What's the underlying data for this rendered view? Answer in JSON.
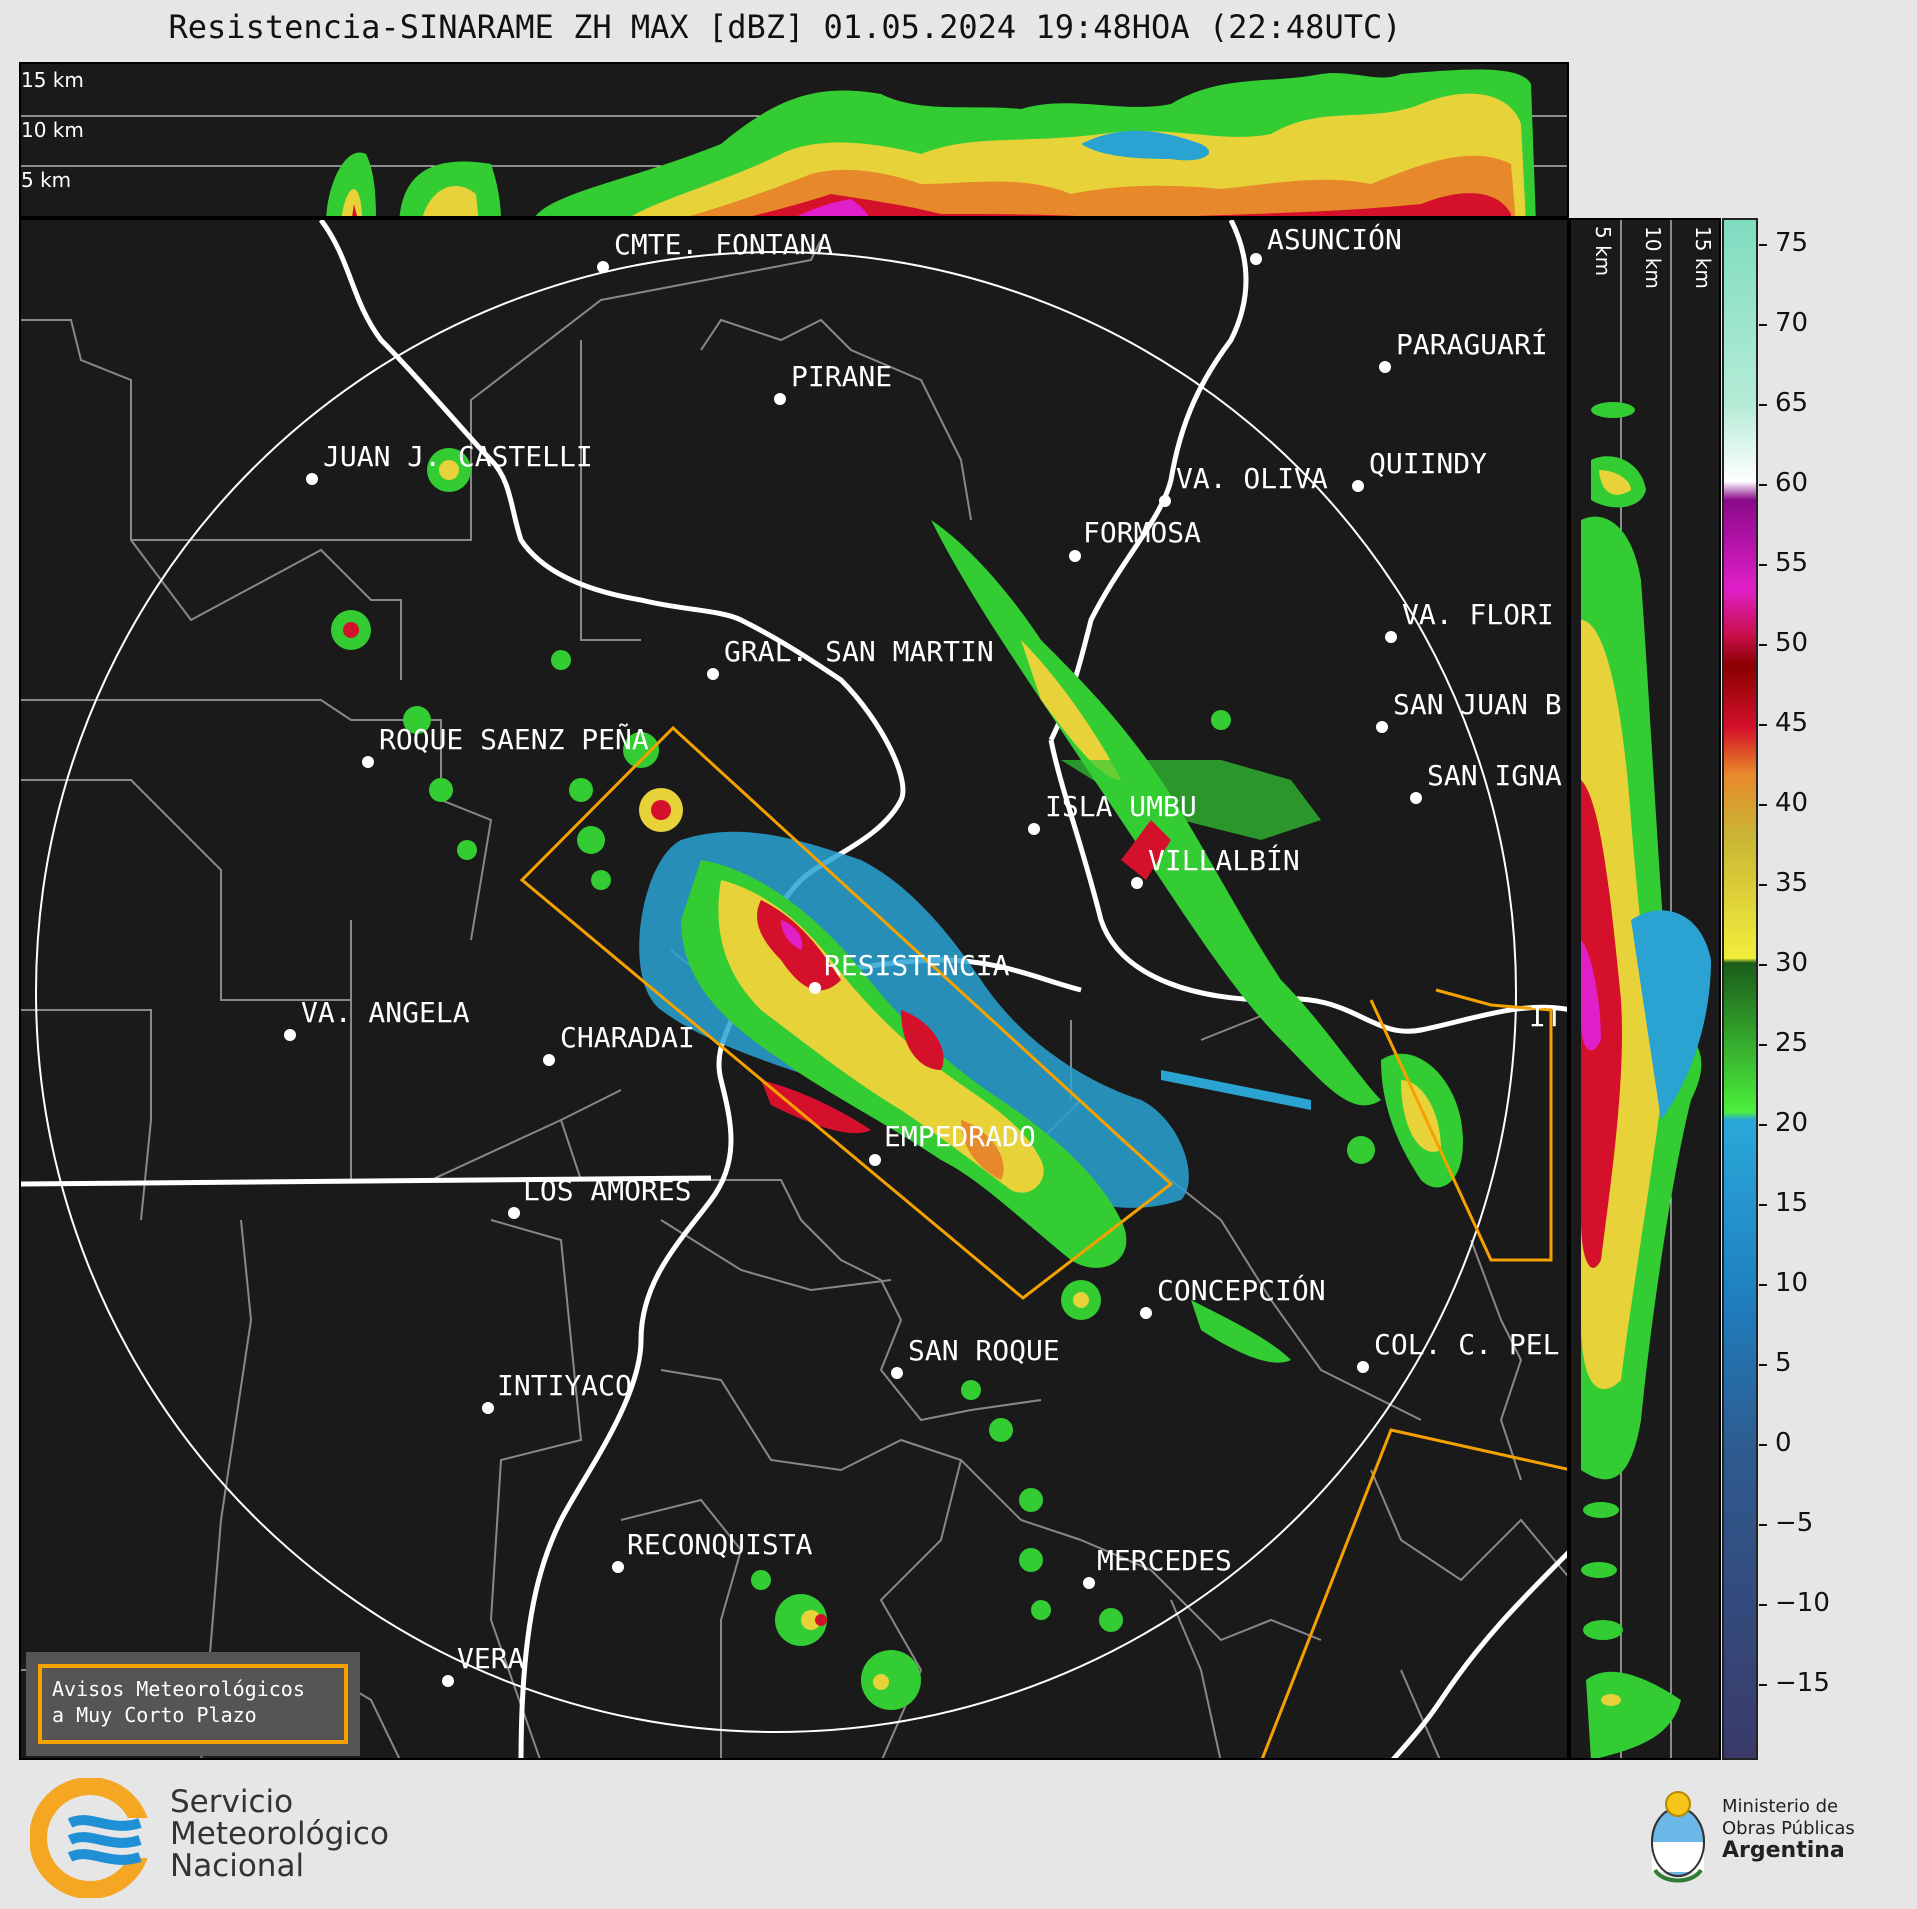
{
  "title": "Resistencia-SINARAME ZH MAX [dBZ] 01.05.2024 19:48HOA (22:48UTC)",
  "top_altitude_labels": [
    "15 km",
    "10 km",
    "5 km"
  ],
  "side_altitude_labels": [
    "5 km",
    "10 km",
    "15 km"
  ],
  "colorbar": {
    "unit": "dBZ",
    "ticks": [
      "75",
      "70",
      "65",
      "60",
      "55",
      "50",
      "45",
      "40",
      "35",
      "30",
      "25",
      "20",
      "15",
      "10",
      "5",
      "0",
      "−5",
      "−10",
      "−15"
    ]
  },
  "cities": [
    {
      "name": "CMTE. FONTANA"
    },
    {
      "name": "ASUNCIÓN"
    },
    {
      "name": "PARAGUARÍ"
    },
    {
      "name": "PIRANE"
    },
    {
      "name": "JUAN J. CASTELLI"
    },
    {
      "name": "VA. OLIVA"
    },
    {
      "name": "QUIINDY"
    },
    {
      "name": "FORMOSA"
    },
    {
      "name": "VA. FLORI"
    },
    {
      "name": "GRAL. SAN MARTIN"
    },
    {
      "name": "SAN JUAN B"
    },
    {
      "name": "ROQUE SAENZ PEÑA"
    },
    {
      "name": "SAN IGNA"
    },
    {
      "name": "ISLA UMBU"
    },
    {
      "name": "VILLALBÍN"
    },
    {
      "name": "RESISTENCIA"
    },
    {
      "name": "VA. ANGELA"
    },
    {
      "name": "CHARADAI"
    },
    {
      "name": "IT"
    },
    {
      "name": "EMPEDRADO"
    },
    {
      "name": "LOS AMORES"
    },
    {
      "name": "CONCEPCIÓN"
    },
    {
      "name": "SAN ROQUE"
    },
    {
      "name": "COL. C. PEL"
    },
    {
      "name": "INTIYACO"
    },
    {
      "name": "RECONQUISTA"
    },
    {
      "name": "MERCEDES"
    },
    {
      "name": "VERA"
    }
  ],
  "legend": {
    "line1": "Avisos Meteorológicos",
    "line2": "a Muy Corto Plazo"
  },
  "agency": {
    "line1": "Servicio",
    "line2": "Meteorológico",
    "line3": "Nacional"
  },
  "ministry": {
    "line1": "Ministerio de",
    "line2": "Obras Públicas",
    "line3": "Argentina"
  },
  "colors": {
    "background": "#1a1a1a",
    "warning_polygon": "#f5a100",
    "range_ring": "#ffffff"
  }
}
